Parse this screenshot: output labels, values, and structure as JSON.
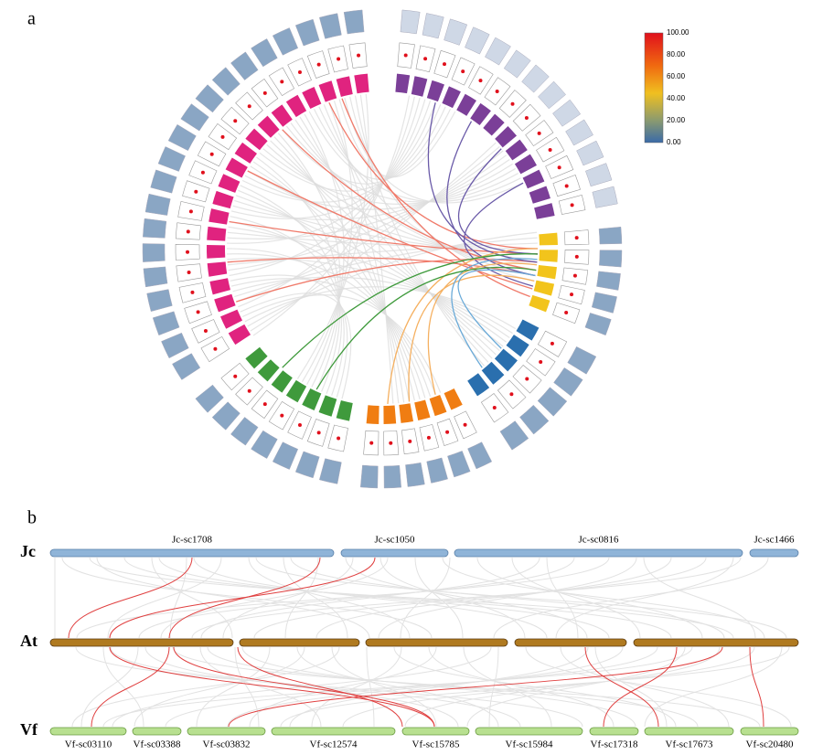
{
  "panel_a": {
    "label": "a",
    "colorbar_ticks": [
      "100.00",
      "80.00",
      "60.00",
      "40.00",
      "20.00",
      "0.00"
    ]
  },
  "panel_b": {
    "label": "b",
    "rows": [
      {
        "name": "Jc",
        "segments": [
          "Jc-sc1708",
          "Jc-sc1050",
          "Jc-sc0816",
          "Jc-sc1466"
        ]
      },
      {
        "name": "At"
      },
      {
        "name": "Vf",
        "segments": [
          "Vf-sc03110",
          "Vf-sc03388",
          "Vf-sc03832",
          "Vf-sc12574",
          "Vf-sc15785",
          "Vf-sc15984",
          "Vf-sc17318",
          "Vf-sc17673",
          "Vf-sc20480"
        ]
      }
    ]
  }
}
